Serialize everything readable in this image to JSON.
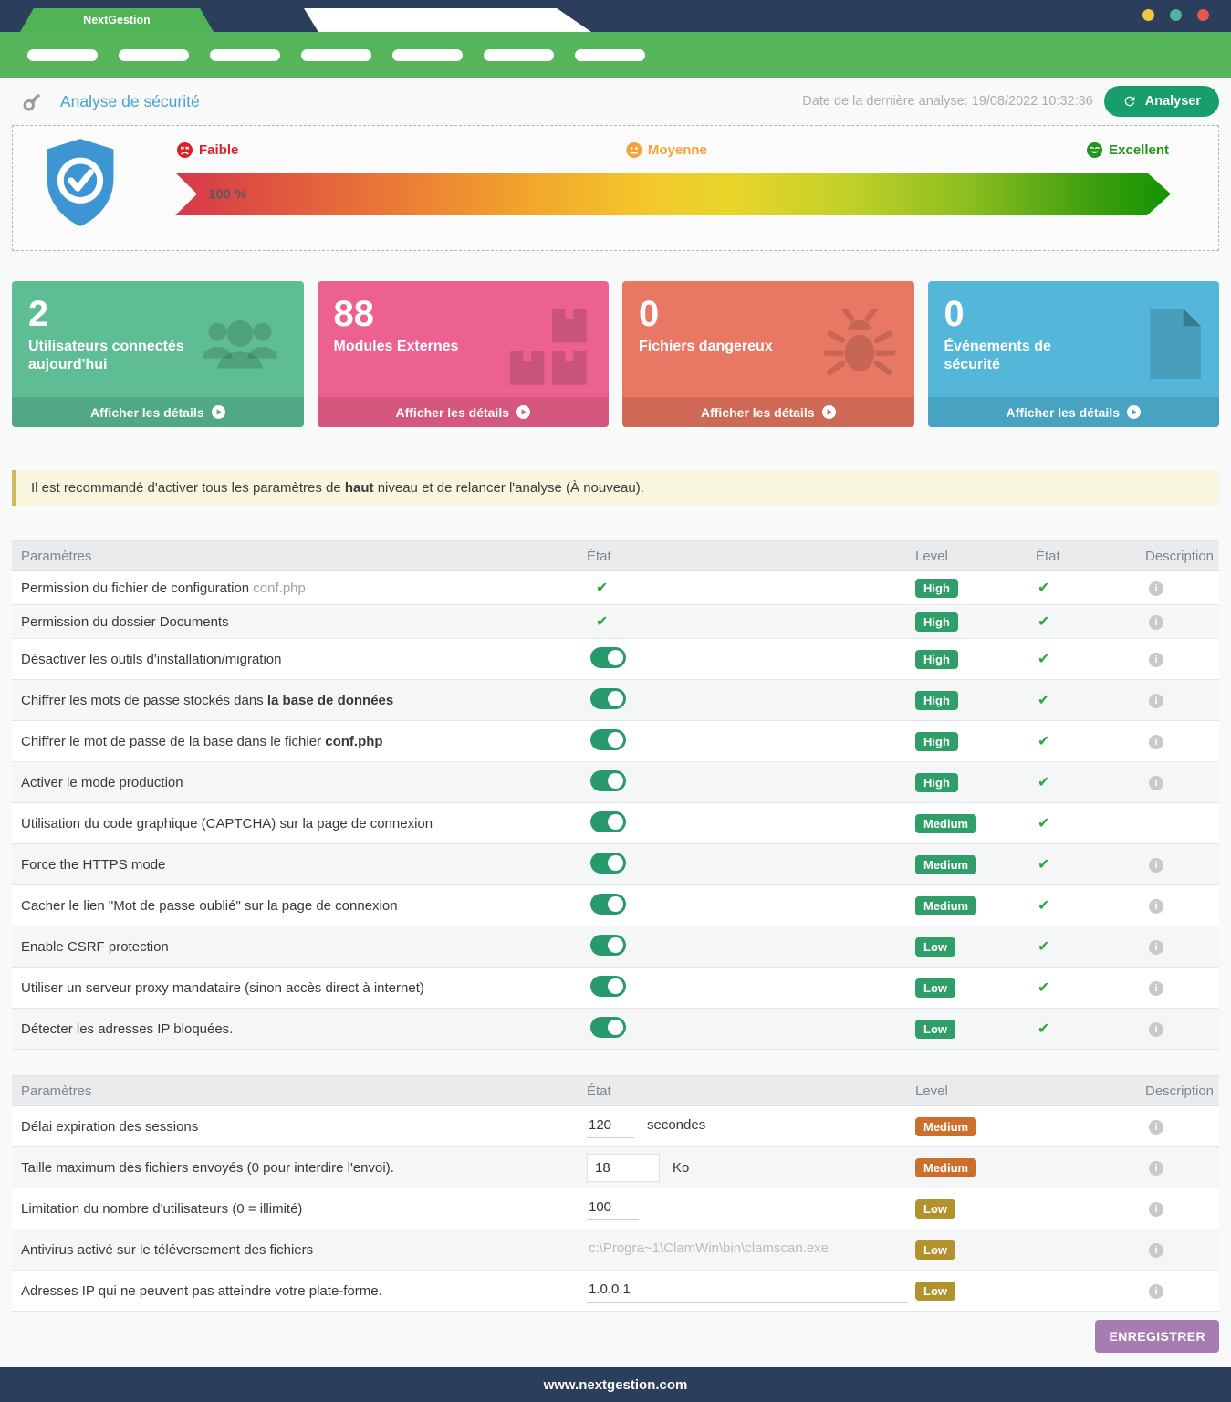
{
  "window": {
    "brand": "NextGestion",
    "traffic_lights": [
      "#f0c943",
      "#4db6a0",
      "#e8564a"
    ]
  },
  "nav": {
    "placeholder_count": 7
  },
  "page_header": {
    "title": "Analyse de sécurité",
    "last_analysis": "Date de la dernière analyse: 19/08/2022 10:32:36",
    "analyze_button": "Analyser"
  },
  "gauge": {
    "percent_label": "100 %",
    "levels": [
      {
        "label": "Faible",
        "color": "#dc2126",
        "face": "angry"
      },
      {
        "label": "Moyenne",
        "color": "#f2a43b",
        "face": "neutral"
      },
      {
        "label": "Excellent",
        "color": "#23951c",
        "face": "happy"
      }
    ]
  },
  "stat_cards": [
    {
      "value": "2",
      "label": "Utilisateurs connectés aujourd'hui",
      "details": "Afficher les détails",
      "icon": "users-icon",
      "bg": "#5ebd94",
      "footer_bg": "#50a884"
    },
    {
      "value": "88",
      "label": "Modules Externes",
      "details": "Afficher les détails",
      "icon": "cubes-icon",
      "bg": "#ec6190",
      "footer_bg": "#d5577e"
    },
    {
      "value": "0",
      "label": "Fichiers dangereux",
      "details": "Afficher les détails",
      "icon": "bug-icon",
      "bg": "#e87763",
      "footer_bg": "#ce6955"
    },
    {
      "value": "0",
      "label": "Événements de sécurité",
      "details": "Afficher les détails",
      "icon": "file-icon",
      "bg": "#54b7d9",
      "footer_bg": "#48a2c2"
    }
  ],
  "notice": {
    "pre": "Il est recommandé d'activer tous les paramètres de ",
    "bold": "haut",
    "post": " niveau et de relancer l'analyse (À nouveau)."
  },
  "table1": {
    "headers": [
      "Paramètres",
      "État",
      "Level",
      "État",
      "Description"
    ],
    "rows": [
      {
        "label": "Permission du fichier de configuration ",
        "suffix": "conf.php",
        "suffix_style": "muted",
        "state": "check",
        "level": "High",
        "level_color": "#2f9e68",
        "state2": true,
        "info": true
      },
      {
        "label": "Permission du dossier Documents",
        "state": "check",
        "level": "High",
        "level_color": "#2f9e68",
        "state2": true,
        "info": true
      },
      {
        "label": "Désactiver les outils d'installation/migration",
        "state": "toggle",
        "level": "High",
        "level_color": "#2f9e68",
        "state2": true,
        "info": true
      },
      {
        "label": "Chiffrer les mots de passe stockés dans ",
        "suffix": "la base de données",
        "suffix_style": "bold",
        "state": "toggle",
        "level": "High",
        "level_color": "#2f9e68",
        "state2": true,
        "info": true
      },
      {
        "label": "Chiffrer le mot de passe de la base dans le fichier ",
        "suffix": "conf.php",
        "suffix_style": "bold",
        "state": "toggle",
        "level": "High",
        "level_color": "#2f9e68",
        "state2": true,
        "info": true
      },
      {
        "label": "Activer le mode production",
        "state": "toggle",
        "level": "High",
        "level_color": "#2f9e68",
        "state2": true,
        "info": true
      },
      {
        "label": "Utilisation du code graphique (CAPTCHA) sur la page de connexion",
        "state": "toggle",
        "level": "Medium",
        "level_color": "#2f9e68",
        "state2": true,
        "info": false
      },
      {
        "label": "Force the HTTPS mode",
        "state": "toggle",
        "level": "Medium",
        "level_color": "#2f9e68",
        "state2": true,
        "info": true
      },
      {
        "label": "Cacher le lien \"Mot de passe oublié\" sur la page de connexion",
        "state": "toggle",
        "level": "Medium",
        "level_color": "#2f9e68",
        "state2": true,
        "info": true
      },
      {
        "label": "Enable CSRF protection",
        "state": "toggle",
        "level": "Low",
        "level_color": "#2f9e68",
        "state2": true,
        "info": true
      },
      {
        "label": "Utiliser un serveur proxy mandataire (sinon accès direct à internet)",
        "state": "toggle",
        "level": "Low",
        "level_color": "#2f9e68",
        "state2": true,
        "info": true
      },
      {
        "label": "Détecter les adresses IP bloquées.",
        "state": "toggle",
        "level": "Low",
        "level_color": "#2f9e68",
        "state2": true,
        "info": true
      }
    ]
  },
  "table2": {
    "headers": [
      "Paramètres",
      "État",
      "Level",
      "Description"
    ],
    "rows": [
      {
        "label": "Délai expiration des sessions",
        "value": "120",
        "unit": "secondes",
        "level": "Medium",
        "level_color": "#cc6f2d",
        "info": true
      },
      {
        "label": "Taille maximum des fichiers envoyés (0 pour interdire l'envoi).",
        "value": "18",
        "unit": "Ko",
        "level": "Medium",
        "level_color": "#cc6f2d",
        "info": true
      },
      {
        "label": "Limitation du nombre d'utilisateurs (0 = illimité)",
        "value": "100",
        "level": "Low",
        "level_color": "#b2922d",
        "info": true
      },
      {
        "label": "Antivirus activé sur le téléversement des fichiers",
        "value": "",
        "placeholder": "c:\\Progra~1\\ClamWin\\bin\\clamscan.exe",
        "level": "Low",
        "level_color": "#b2922d",
        "info": true
      },
      {
        "label": "Adresses IP qui ne peuvent pas atteindre votre plate-forme.",
        "value": "1.0.0.1",
        "level": "Low",
        "level_color": "#b2922d",
        "info": true
      }
    ]
  },
  "save_button": "ENREGISTRER",
  "footer": {
    "url": "www.nextgestion.com"
  }
}
